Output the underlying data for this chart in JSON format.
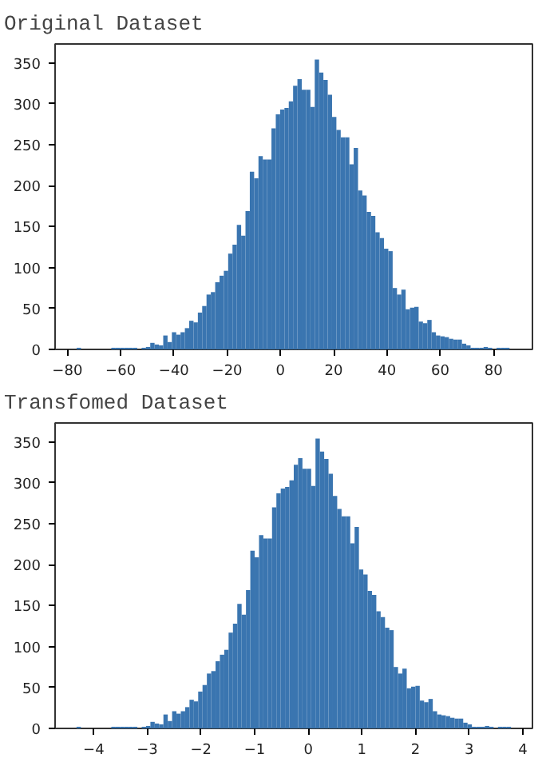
{
  "chart_data": [
    {
      "type": "histogram",
      "title": "Original Dataset",
      "color": "#3a75b0",
      "bins": [
        -76.5,
        -74.875,
        -73.25,
        -71.625,
        -70,
        -68.375,
        -66.75,
        -65.125,
        -63.5,
        -61.875,
        -60.25,
        -58.625,
        -57,
        -55.375,
        -53.75,
        -52.125,
        -50.5,
        -48.875,
        -47.25,
        -45.625,
        -44,
        -42.375,
        -40.75,
        -39.125,
        -37.5,
        -35.875,
        -34.25,
        -32.625,
        -31,
        -29.375,
        -27.75,
        -26.125,
        -24.5,
        -22.875,
        -21.25,
        -19.625,
        -18,
        -16.375,
        -14.75,
        -13.125,
        -11.5,
        -9.875,
        -8.25,
        -6.625,
        -5,
        -3.375,
        -1.75,
        -0.125,
        1.5,
        3.125,
        4.75,
        6.375,
        8,
        9.625,
        11.25,
        12.875,
        14.5,
        16.125,
        17.75,
        19.375,
        21,
        22.625,
        24.25,
        25.875,
        27.5,
        29.125,
        30.75,
        32.375,
        34,
        35.625,
        37.25,
        38.875,
        40.5,
        42.125,
        43.75,
        45.375,
        47,
        48.625,
        50.25,
        51.875,
        53.5,
        55.125,
        56.75,
        58.375,
        60,
        61.625,
        63.25,
        64.875,
        66.5,
        68.125,
        69.75,
        71.375,
        73,
        74.625,
        76.25,
        77.875,
        79.5,
        81.125,
        82.75,
        84.375,
        86
      ],
      "values": [
        2,
        0,
        0,
        0,
        0,
        0,
        0,
        0,
        2,
        2,
        2,
        2,
        2,
        2,
        0,
        2,
        3,
        8,
        6,
        5,
        17,
        9,
        21,
        18,
        21,
        26,
        35,
        33,
        45,
        53,
        67,
        70,
        82,
        90,
        96,
        117,
        128,
        152,
        139,
        169,
        217,
        209,
        236,
        232,
        232,
        270,
        287,
        293,
        295,
        303,
        322,
        330,
        317,
        317,
        296,
        354,
        338,
        329,
        311,
        284,
        268,
        259,
        259,
        226,
        246,
        194,
        188,
        168,
        163,
        143,
        136,
        123,
        120,
        75,
        67,
        73,
        49,
        51,
        52,
        34,
        32,
        36,
        21,
        17,
        16,
        15,
        13,
        12,
        12,
        7,
        5,
        2,
        2,
        2,
        3,
        2,
        0,
        2,
        2,
        2
      ],
      "xlim": [
        -84.6,
        94.6
      ],
      "ylim": [
        0,
        373
      ],
      "xticks": [
        -80,
        -60,
        -40,
        -20,
        0,
        20,
        40,
        60,
        80
      ],
      "yticks": [
        0,
        50,
        100,
        150,
        200,
        250,
        300,
        350
      ]
    },
    {
      "type": "histogram",
      "title": "Transfomed Dataset",
      "color": "#3a75b0",
      "bins": [
        -4.32,
        -4.239,
        -4.158,
        -4.077,
        -3.996,
        -3.915,
        -3.834,
        -3.753,
        -3.672,
        -3.591,
        -3.51,
        -3.429,
        -3.348,
        -3.267,
        -3.186,
        -3.105,
        -3.024,
        -2.943,
        -2.862,
        -2.781,
        -2.7,
        -2.619,
        -2.538,
        -2.457,
        -2.376,
        -2.295,
        -2.214,
        -2.133,
        -2.052,
        -1.971,
        -1.89,
        -1.809,
        -1.728,
        -1.647,
        -1.566,
        -1.485,
        -1.404,
        -1.323,
        -1.242,
        -1.161,
        -1.08,
        -0.999,
        -0.918,
        -0.837,
        -0.756,
        -0.675,
        -0.594,
        -0.513,
        -0.432,
        -0.351,
        -0.27,
        -0.189,
        -0.108,
        -0.027,
        0.054,
        0.135,
        0.216,
        0.297,
        0.378,
        0.459,
        0.54,
        0.621,
        0.702,
        0.783,
        0.864,
        0.945,
        1.026,
        1.107,
        1.188,
        1.269,
        1.35,
        1.431,
        1.512,
        1.593,
        1.674,
        1.755,
        1.836,
        1.917,
        1.998,
        2.079,
        2.16,
        2.241,
        2.322,
        2.403,
        2.484,
        2.565,
        2.646,
        2.727,
        2.808,
        2.889,
        2.97,
        3.051,
        3.132,
        3.213,
        3.294,
        3.375,
        3.456,
        3.537,
        3.618,
        3.699,
        3.78
      ],
      "values": [
        2,
        0,
        0,
        0,
        0,
        0,
        0,
        0,
        2,
        2,
        2,
        2,
        2,
        2,
        0,
        2,
        3,
        8,
        6,
        5,
        17,
        9,
        21,
        18,
        21,
        26,
        35,
        33,
        45,
        53,
        67,
        70,
        82,
        90,
        96,
        117,
        128,
        152,
        139,
        169,
        217,
        209,
        236,
        232,
        232,
        270,
        287,
        293,
        295,
        303,
        322,
        330,
        317,
        317,
        296,
        354,
        338,
        329,
        311,
        284,
        268,
        259,
        259,
        226,
        246,
        194,
        188,
        168,
        163,
        143,
        136,
        123,
        120,
        75,
        67,
        73,
        49,
        51,
        52,
        34,
        32,
        36,
        21,
        17,
        16,
        15,
        13,
        12,
        12,
        7,
        5,
        2,
        2,
        2,
        3,
        2,
        0,
        2,
        2,
        2
      ],
      "xlim": [
        -4.72,
        4.18
      ],
      "ylim": [
        0,
        373
      ],
      "xticks": [
        -4,
        -3,
        -2,
        -1,
        0,
        1,
        2,
        3,
        4
      ],
      "yticks": [
        0,
        50,
        100,
        150,
        200,
        250,
        300,
        350
      ]
    }
  ]
}
